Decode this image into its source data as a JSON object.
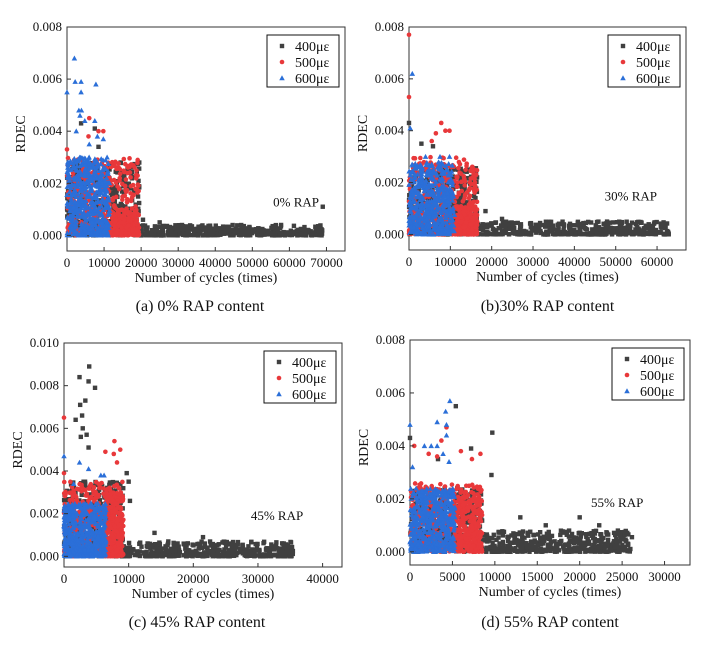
{
  "colors": {
    "400": "#404040",
    "500": "#e8383a",
    "600": "#2b6fd8"
  },
  "chart_data": [
    {
      "type": "scatter",
      "panel": "a",
      "caption": "(a) 0% RAP content",
      "annotation": "0%  RAP",
      "xlabel": "Number of cycles (times)",
      "ylabel": "RDEC",
      "xlim": [
        0,
        75000
      ],
      "ylim": [
        -0.0006,
        0.008
      ],
      "xticks": [
        0,
        10000,
        20000,
        30000,
        40000,
        50000,
        60000,
        70000
      ],
      "yticks": [
        0.0,
        0.002,
        0.004,
        0.006,
        0.008
      ],
      "ytick_labels": [
        "0.000",
        "0.002",
        "0.004",
        "0.006",
        "0.008"
      ],
      "xtick_labels": [
        "0",
        "10000",
        "20000",
        "30000",
        "40000",
        "50000",
        "60000",
        "70000"
      ],
      "legend": {
        "position": "top-right",
        "entries": [
          "400με",
          "500με",
          "600με"
        ]
      },
      "series": [
        {
          "name": "400με",
          "marker": "square",
          "x_end": 69000,
          "dense_max": 0.0028,
          "tail_max": 0.0004,
          "outliers": [
            [
              3800,
              0.0043
            ],
            [
              7500,
              0.0041
            ],
            [
              8500,
              0.0034
            ],
            [
              69000,
              0.0011
            ],
            [
              20500,
              0.0006
            ],
            [
              25000,
              0.0005
            ]
          ]
        },
        {
          "name": "500με",
          "marker": "circle",
          "x_end": 19500,
          "dense_max": 0.003,
          "tail_max": 0.0009,
          "outliers": [
            [
              0,
              0.0033
            ],
            [
              6000,
              0.0045
            ],
            [
              5800,
              0.0038
            ],
            [
              8500,
              0.004
            ],
            [
              9800,
              0.004
            ],
            [
              15500,
              0.0009
            ],
            [
              12000,
              0.0009
            ]
          ]
        },
        {
          "name": "600με",
          "marker": "triangle",
          "x_end": 11500,
          "dense_max": 0.003,
          "tail_max": 0.003,
          "outliers": [
            [
              0,
              0.0055
            ],
            [
              2000,
              0.0068
            ],
            [
              2200,
              0.0059
            ],
            [
              3800,
              0.0059
            ],
            [
              3800,
              0.0055
            ],
            [
              7800,
              0.0058
            ],
            [
              3200,
              0.0048
            ],
            [
              3900,
              0.0048
            ],
            [
              3500,
              0.0046
            ],
            [
              4800,
              0.0044
            ],
            [
              7500,
              0.0044
            ],
            [
              2500,
              0.004
            ],
            [
              9800,
              0.0037
            ],
            [
              6000,
              0.0035
            ],
            [
              8200,
              0.0038
            ]
          ]
        }
      ]
    },
    {
      "type": "scatter",
      "panel": "b",
      "caption": "(b)30% RAP content",
      "annotation": "30%  RAP",
      "xlabel": "Number of cycles (times)",
      "ylabel": "RDEC",
      "xlim": [
        0,
        67000
      ],
      "ylim": [
        -0.0006,
        0.008
      ],
      "xticks": [
        0,
        10000,
        20000,
        30000,
        40000,
        50000,
        60000
      ],
      "xtick_labels": [
        "0",
        "10000",
        "20000",
        "30000",
        "40000",
        "50000",
        "60000"
      ],
      "yticks": [
        0.0,
        0.002,
        0.004,
        0.006,
        0.008
      ],
      "ytick_labels": [
        "0.000",
        "0.002",
        "0.004",
        "0.006",
        "0.008"
      ],
      "legend": {
        "position": "top-right",
        "entries": [
          "400με",
          "500με",
          "600με"
        ]
      },
      "series": [
        {
          "name": "400με",
          "marker": "square",
          "x_end": 63000,
          "dense_max": 0.0026,
          "tail_max": 0.0005,
          "outliers": [
            [
              0,
              0.0043
            ],
            [
              3000,
              0.0035
            ],
            [
              5800,
              0.0034
            ],
            [
              18500,
              0.0009
            ],
            [
              22500,
              0.0006
            ],
            [
              34000,
              0.0004
            ],
            [
              59000,
              0.0003
            ]
          ]
        },
        {
          "name": "500με",
          "marker": "circle",
          "x_end": 16500,
          "dense_max": 0.003,
          "tail_max": 0.0011,
          "outliers": [
            [
              0,
              0.0077
            ],
            [
              0,
              0.0053
            ],
            [
              7800,
              0.0043
            ],
            [
              8800,
              0.004
            ],
            [
              9800,
              0.004
            ],
            [
              6500,
              0.0039
            ],
            [
              5500,
              0.0036
            ],
            [
              14500,
              0.0014
            ]
          ]
        },
        {
          "name": "600με",
          "marker": "triangle",
          "x_end": 11000,
          "dense_max": 0.0028,
          "tail_max": 0.0028,
          "outliers": [
            [
              800,
              0.0062
            ],
            [
              300,
              0.0041
            ],
            [
              7500,
              0.003
            ],
            [
              9800,
              0.003
            ],
            [
              4000,
              0.003
            ]
          ]
        }
      ]
    },
    {
      "type": "scatter",
      "panel": "c",
      "caption": "(c) 45% RAP content",
      "annotation": "45%  RAP",
      "xlabel": "Number of cycles (times)",
      "ylabel": "RDEC",
      "xlim": [
        0,
        43000
      ],
      "ylim": [
        -0.0005,
        0.01
      ],
      "xticks": [
        0,
        10000,
        20000,
        30000,
        40000
      ],
      "xtick_labels": [
        "0",
        "10000",
        "20000",
        "30000",
        "40000"
      ],
      "yticks": [
        0.0,
        0.002,
        0.004,
        0.006,
        0.008,
        0.01
      ],
      "ytick_labels": [
        "0.000",
        "0.002",
        "0.004",
        "0.006",
        "0.008",
        "0.010"
      ],
      "legend": {
        "position": "top-right",
        "entries": [
          "400με",
          "500με",
          "600με"
        ]
      },
      "series": [
        {
          "name": "400με",
          "marker": "square",
          "x_end": 35500,
          "dense_max": 0.0035,
          "tail_max": 0.0007,
          "outliers": [
            [
              3900,
              0.0089
            ],
            [
              2400,
              0.0084
            ],
            [
              3800,
              0.0082
            ],
            [
              4800,
              0.0079
            ],
            [
              3300,
              0.0073
            ],
            [
              2500,
              0.0071
            ],
            [
              2800,
              0.0066
            ],
            [
              1800,
              0.0064
            ],
            [
              2900,
              0.006
            ],
            [
              3500,
              0.0057
            ],
            [
              2600,
              0.0056
            ],
            [
              3800,
              0.0051
            ],
            [
              9700,
              0.0039
            ],
            [
              10000,
              0.0035
            ],
            [
              10200,
              0.0026
            ],
            [
              14000,
              0.0011
            ],
            [
              21500,
              0.0009
            ],
            [
              34000,
              0.0006
            ]
          ]
        },
        {
          "name": "500με",
          "marker": "circle",
          "x_end": 9200,
          "dense_max": 0.0035,
          "tail_max": 0.003,
          "outliers": [
            [
              0,
              0.0065
            ],
            [
              7800,
              0.0054
            ],
            [
              6400,
              0.0049
            ],
            [
              8700,
              0.005
            ],
            [
              7700,
              0.0048
            ],
            [
              8200,
              0.0044
            ],
            [
              0,
              0.0039
            ]
          ]
        },
        {
          "name": "600με",
          "marker": "triangle",
          "x_end": 6500,
          "dense_max": 0.0025,
          "tail_max": 0.0025,
          "outliers": [
            [
              0,
              0.0047
            ],
            [
              2400,
              0.0044
            ],
            [
              3800,
              0.0041
            ],
            [
              5700,
              0.0038
            ],
            [
              6200,
              0.0038
            ],
            [
              1500,
              0.0034
            ]
          ]
        }
      ]
    },
    {
      "type": "scatter",
      "panel": "d",
      "caption": "(d) 55% RAP content",
      "annotation": "55%  RAP",
      "xlabel": "Number of cycles (times)",
      "ylabel": "RDEC",
      "xlim": [
        0,
        33000
      ],
      "ylim": [
        -0.0005,
        0.008
      ],
      "xticks": [
        0,
        5000,
        10000,
        15000,
        20000,
        25000,
        30000
      ],
      "xtick_labels": [
        "0",
        "5000",
        "10000",
        "15000",
        "20000",
        "25000",
        "30000"
      ],
      "yticks": [
        0.0,
        0.002,
        0.004,
        0.006,
        0.008
      ],
      "ytick_labels": [
        "0.000",
        "0.002",
        "0.004",
        "0.006",
        "0.008"
      ],
      "legend": {
        "position": "top-right",
        "entries": [
          "400με",
          "500με",
          "600με"
        ]
      },
      "series": [
        {
          "name": "400με",
          "marker": "square",
          "x_end": 26200,
          "dense_max": 0.0024,
          "tail_max": 0.0008,
          "outliers": [
            [
              5400,
              0.0055
            ],
            [
              9700,
              0.0045
            ],
            [
              0,
              0.0043
            ],
            [
              7200,
              0.0039
            ],
            [
              9600,
              0.0029
            ],
            [
              3300,
              0.0035
            ],
            [
              13000,
              0.0013
            ],
            [
              20000,
              0.0013
            ],
            [
              16000,
              0.001
            ],
            [
              22300,
              0.001
            ],
            [
              24500,
              0.0008
            ]
          ]
        },
        {
          "name": "500με",
          "marker": "circle",
          "x_end": 8500,
          "dense_max": 0.0026,
          "tail_max": 0.002,
          "outliers": [
            [
              500,
              0.004
            ],
            [
              4300,
              0.0047
            ],
            [
              3700,
              0.0042
            ],
            [
              6000,
              0.0038
            ],
            [
              8300,
              0.0037
            ],
            [
              7300,
              0.0035
            ],
            [
              2200,
              0.0037
            ],
            [
              3200,
              0.0036
            ]
          ]
        },
        {
          "name": "600με",
          "marker": "triangle",
          "x_end": 5300,
          "dense_max": 0.0024,
          "tail_max": 0.0024,
          "outliers": [
            [
              4700,
              0.0057
            ],
            [
              4200,
              0.0053
            ],
            [
              3200,
              0.0049
            ],
            [
              0,
              0.0048
            ],
            [
              4300,
              0.0048
            ],
            [
              4300,
              0.0044
            ],
            [
              1700,
              0.004
            ],
            [
              2500,
              0.004
            ],
            [
              3200,
              0.004
            ],
            [
              3900,
              0.0037
            ],
            [
              300,
              0.0032
            ],
            [
              4600,
              0.0034
            ]
          ]
        }
      ]
    }
  ]
}
